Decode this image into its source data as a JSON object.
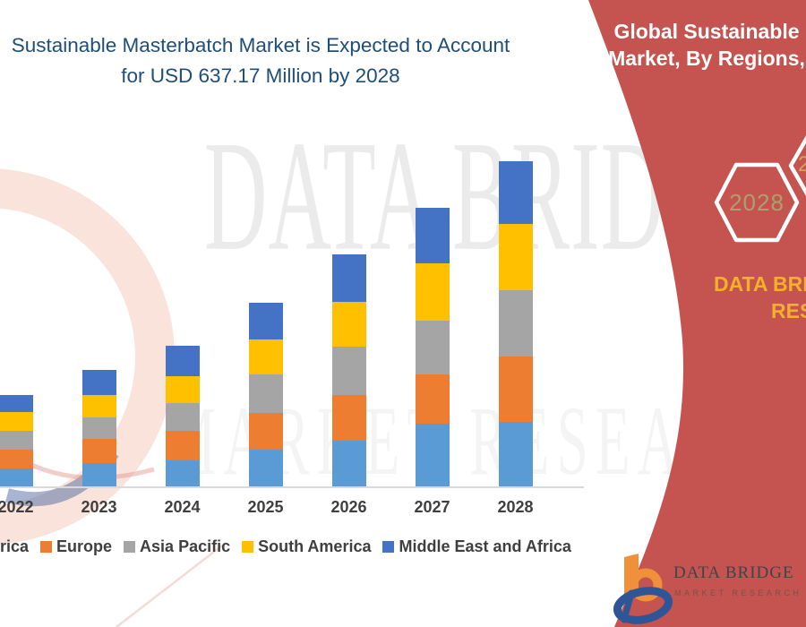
{
  "title": {
    "line1": "Sustainable Masterbatch Market is Expected to Account",
    "line2": "for USD 637.17 Million by 2028"
  },
  "right_panel": {
    "bg_color": "#C5534F",
    "heading_line1": "Global Sustainable",
    "heading_line2": "Market, By Regions,",
    "hexagon_year": "2028",
    "hexagon_fragment": "2",
    "brand_line1": "DATA BRI",
    "brand_line2": "RES"
  },
  "footer_logo": {
    "title": "DATA BRIDGE",
    "subtitle": "MARKET RESEARCH"
  },
  "watermarks": {
    "primary": "DATA BRIDGE",
    "secondary": "MARKET RESEARCH"
  },
  "legend": {
    "items": [
      {
        "label": "rica",
        "color": ""
      },
      {
        "label": "Europe",
        "color": "#ED7D31"
      },
      {
        "label": "Asia Pacific",
        "color": "#A5A5A5"
      },
      {
        "label": "South America",
        "color": "#FFC000"
      },
      {
        "label": "Middle East and Africa",
        "color": "#4472C4"
      }
    ]
  },
  "chart_data": {
    "type": "bar",
    "stacked": true,
    "unit": "USD Million",
    "categories": [
      "2022",
      "2023",
      "2024",
      "2025",
      "2026",
      "2027",
      "2028"
    ],
    "series": [
      {
        "name": "North America",
        "color": "#5B9BD5",
        "values": [
          37,
          47,
          53,
          74,
          91,
          124,
          128
        ]
      },
      {
        "name": "Europe",
        "color": "#ED7D31",
        "values": [
          37,
          47,
          58,
          72,
          89,
          96,
          128
        ]
      },
      {
        "name": "Asia Pacific",
        "color": "#A5A5A5",
        "values": [
          37,
          42,
          54,
          75,
          95,
          105,
          130
        ]
      },
      {
        "name": "South America",
        "color": "#FFC000",
        "values": [
          37,
          44,
          53,
          68,
          88,
          112,
          128
        ]
      },
      {
        "name": "Middle East and Africa",
        "color": "#4472C4",
        "values": [
          33,
          49,
          58,
          72,
          93,
          109,
          123.17
        ]
      }
    ],
    "totals": [
      181,
      229,
      276,
      361,
      456,
      546,
      637.17
    ],
    "ylim": [
      0,
      660
    ],
    "y_axis_shown": false,
    "grid": false,
    "legend_position": "bottom",
    "highlight_value": "USD 637.17 Million by 2028"
  },
  "colors": {
    "title_text": "#1F4E79",
    "axis_label": "#3F3F3F",
    "axis_line": "#D9D9D9",
    "panel_red": "#C5534F",
    "hexagon_year_text": "#ACA06F",
    "brand_yellow": "#F2B02C"
  }
}
